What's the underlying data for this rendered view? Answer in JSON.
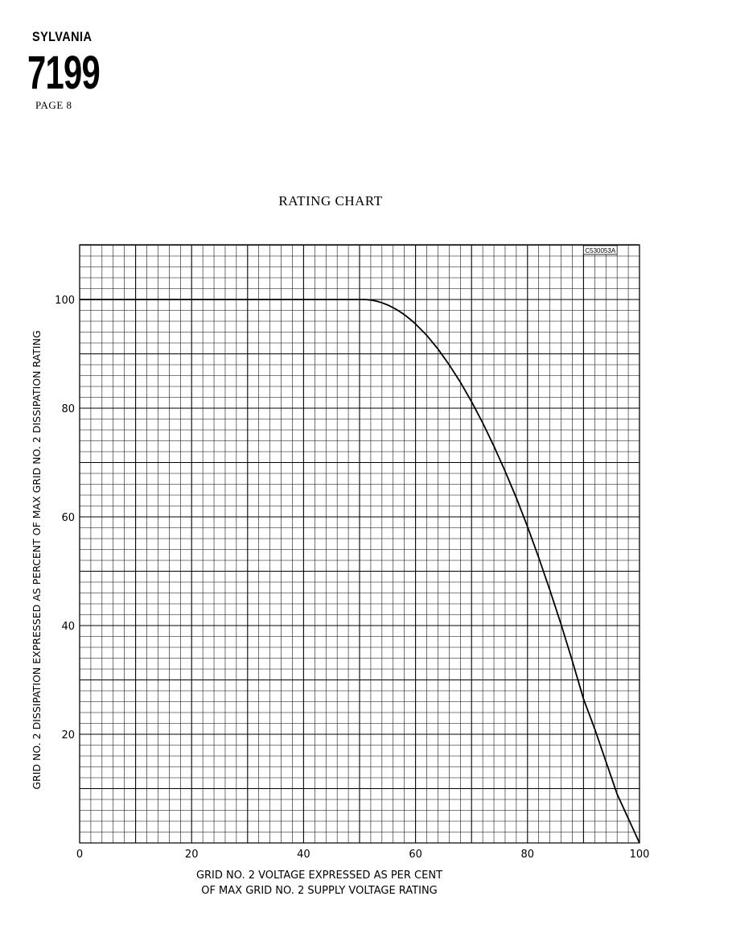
{
  "header": {
    "brand": "SYLVANIA",
    "model": "7199",
    "page": "PAGE 8"
  },
  "chart_data": {
    "type": "line",
    "title": "RATING CHART",
    "code": "C530053A",
    "xlabel_line1": "GRID NO. 2  VOLTAGE  EXPRESSED  AS  PER  CENT",
    "xlabel_line2": "OF  MAX  GRID  NO. 2  SUPPLY  VOLTAGE  RATING",
    "ylabel": "GRID NO. 2  DISSIPATION  EXPRESSED  AS  PERCENT  OF  MAX  GRID  NO. 2  DISSIPATION  RATING",
    "xlim": [
      0,
      100
    ],
    "ylim": [
      0,
      110
    ],
    "xticks": [
      0,
      20,
      40,
      60,
      80,
      100
    ],
    "xtick_labels": [
      "0",
      "20",
      "40",
      "60",
      "80",
      "100"
    ],
    "yticks": [
      20,
      40,
      60,
      80,
      100
    ],
    "ytick_labels": [
      "20",
      "40",
      "60",
      "80",
      "100"
    ],
    "grid": true,
    "series": [
      {
        "x": [
          0,
          50,
          51,
          52,
          53,
          54,
          55,
          56,
          57,
          58,
          59,
          60,
          62,
          64,
          66,
          68,
          70,
          72,
          74,
          76,
          78,
          80,
          82,
          84,
          86,
          88,
          90,
          92,
          94,
          96,
          98,
          100
        ],
        "y": [
          100,
          100,
          100,
          99.9,
          99.7,
          99.4,
          99,
          98.5,
          97.9,
          97.2,
          96.4,
          95.5,
          93.4,
          90.9,
          88,
          84.8,
          81.2,
          77.3,
          73,
          68.4,
          63.5,
          58.2,
          52.5,
          46.5,
          40.2,
          33.5,
          26.5,
          21,
          15,
          9,
          4.5,
          0
        ]
      }
    ],
    "colors": {
      "grid": "#000000",
      "curve": "#000000"
    }
  }
}
